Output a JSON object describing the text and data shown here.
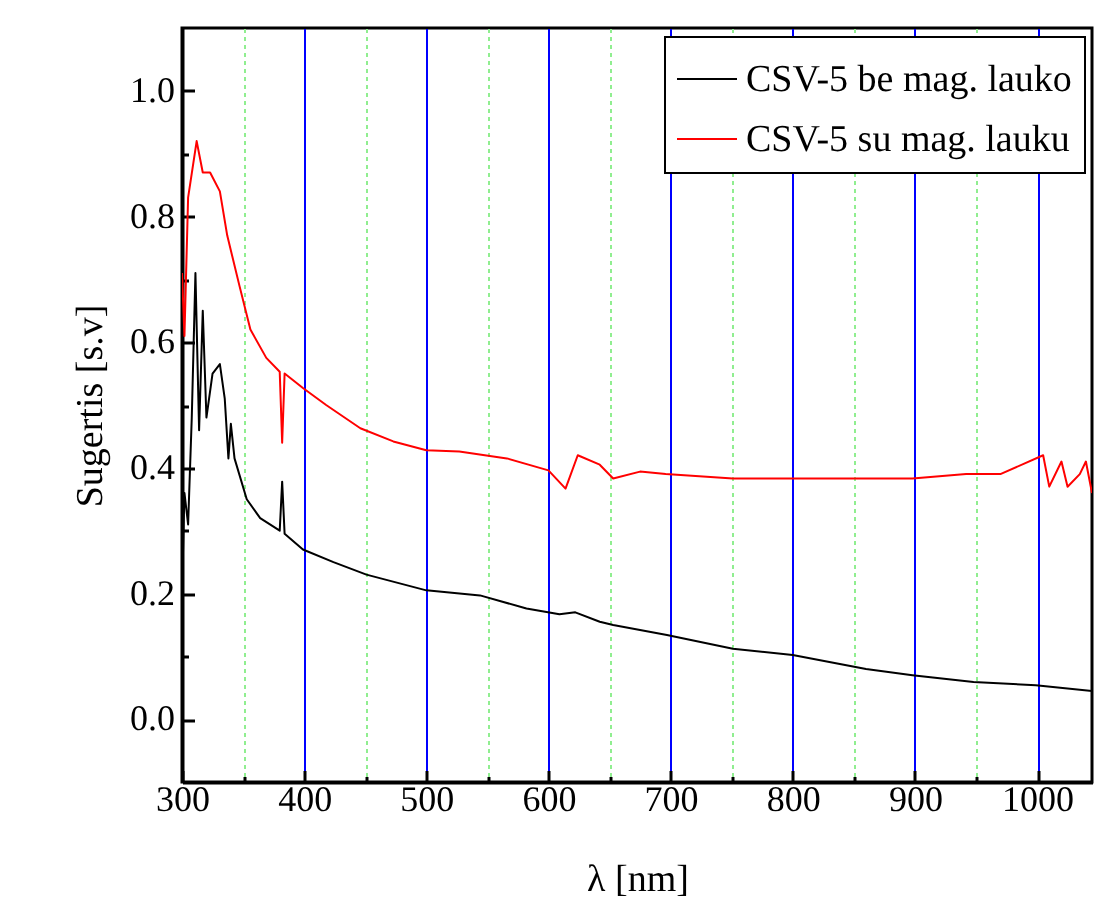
{
  "chart_data": {
    "type": "line",
    "xlabel": "λ [nm]",
    "ylabel": "Sugertis [s.v]",
    "xlim": [
      300,
      1045
    ],
    "ylim": [
      -0.1,
      1.1
    ],
    "xticks": [
      300,
      {
        "value": 350,
        "label": null
      },
      400,
      {
        "value": 450,
        "label": null
      },
      500,
      {
        "value": 550,
        "label": null
      },
      600,
      {
        "value": 650,
        "label": null
      },
      700,
      {
        "value": 750,
        "label": null
      },
      800,
      {
        "value": 850,
        "label": null
      },
      900,
      {
        "value": 950,
        "label": null
      },
      1000
    ],
    "yticks": [
      {
        "value": 0,
        "label": "0.0"
      },
      {
        "value": 0.1,
        "label": null
      },
      {
        "value": 0.2,
        "label": "0.2"
      },
      {
        "value": 0.3,
        "label": null
      },
      {
        "value": 0.4,
        "label": "0.4"
      },
      {
        "value": 0.5,
        "label": null
      },
      {
        "value": 0.6,
        "label": "0.6"
      },
      {
        "value": 0.7,
        "label": null
      },
      {
        "value": 0.8,
        "label": "0.8"
      },
      {
        "value": 0.9,
        "label": null
      },
      {
        "value": 1.0,
        "label": "1.0"
      }
    ],
    "grid": "x",
    "legend": "top right",
    "series": [
      {
        "name": "CSV-5 be mag. lauko",
        "color": "#000000",
        "x": [
          300,
          302,
          305,
          308,
          311,
          314,
          317,
          320,
          325,
          331,
          335,
          338,
          340,
          343,
          353,
          364,
          380,
          382,
          384,
          399,
          424,
          451,
          500,
          544,
          582,
          609,
          622,
          642,
          653,
          697,
          751,
          800,
          860,
          898,
          948,
          999,
          1045
        ],
        "values": [
          0.2,
          0.36,
          0.31,
          0.48,
          0.71,
          0.46,
          0.65,
          0.48,
          0.55,
          0.565,
          0.51,
          0.415,
          0.47,
          0.415,
          0.35,
          0.32,
          0.3,
          0.378,
          0.295,
          0.27,
          0.25,
          0.23,
          0.205,
          0.197,
          0.176,
          0.167,
          0.17,
          0.155,
          0.15,
          0.134,
          0.112,
          0.102,
          0.08,
          0.07,
          0.059,
          0.054,
          0.045
        ]
      },
      {
        "name": "CSV-5 su mag. lauku",
        "color": "#ff0000",
        "x": [
          300,
          302,
          305,
          312,
          317,
          323,
          331,
          337,
          347,
          356,
          369,
          380,
          382,
          384,
          399,
          418,
          446,
          473,
          500,
          527,
          566,
          600,
          614,
          624,
          642,
          653,
          675,
          696,
          751,
          800,
          860,
          898,
          942,
          970,
          1005,
          1010,
          1020,
          1025,
          1035,
          1040,
          1045
        ],
        "values": [
          0.71,
          0.61,
          0.83,
          0.92,
          0.87,
          0.87,
          0.84,
          0.77,
          0.69,
          0.62,
          0.575,
          0.553,
          0.44,
          0.55,
          0.527,
          0.5,
          0.463,
          0.442,
          0.428,
          0.426,
          0.415,
          0.396,
          0.367,
          0.42,
          0.405,
          0.383,
          0.394,
          0.39,
          0.383,
          0.383,
          0.383,
          0.383,
          0.39,
          0.39,
          0.42,
          0.37,
          0.41,
          0.37,
          0.39,
          0.41,
          0.36
        ]
      }
    ]
  }
}
